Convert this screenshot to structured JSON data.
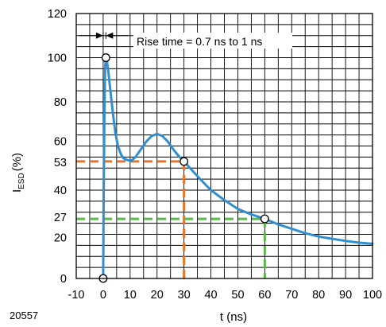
{
  "chart_data": {
    "type": "line",
    "xlabel": "t (ns)",
    "ylabel_main": "I",
    "ylabel_sub": "ESD",
    "ylabel_unit": "(%)",
    "figure_code": "20557",
    "annotation": "Rise time = 0.7 ns to 1 ns",
    "xlim": [
      -10,
      100
    ],
    "ylim": [
      0,
      120
    ],
    "x_ticks": [
      "-10",
      "0",
      "10",
      "20",
      "30",
      "40",
      "50",
      "60",
      "70",
      "80",
      "90",
      "100"
    ],
    "y_ticks": [
      {
        "value": 0,
        "label": "0"
      },
      {
        "value": 20,
        "label": "20"
      },
      {
        "value": 27,
        "label": "27"
      },
      {
        "value": 40,
        "label": "40"
      },
      {
        "value": 53,
        "label": "53"
      },
      {
        "value": 60,
        "label": "60"
      },
      {
        "value": 80,
        "label": "80"
      },
      {
        "value": 100,
        "label": "100"
      },
      {
        "value": 120,
        "label": "120"
      }
    ],
    "grid": true,
    "series": [
      {
        "color": "#2f8fd0",
        "x": [
          0,
          0.15,
          0.4,
          0.7,
          1.0,
          1.3,
          1.8,
          2.5,
          3.5,
          4.5,
          5.5,
          6.5,
          7.5,
          8.5,
          9.5,
          10.5,
          12,
          14,
          16,
          18,
          20,
          22,
          24,
          26,
          28,
          30,
          33,
          36,
          40,
          45,
          50,
          55,
          60,
          65,
          70,
          75,
          80,
          85,
          90,
          95,
          100
        ],
        "y": [
          0,
          30,
          70,
          95,
          100,
          99,
          95,
          87,
          76,
          66,
          60,
          56.5,
          54.5,
          53.8,
          53.5,
          53.4,
          55,
          58.5,
          62,
          64.5,
          65.5,
          64.5,
          62,
          58.5,
          55.5,
          53,
          49,
          45,
          40,
          35.5,
          31.5,
          29,
          27,
          24.5,
          22.5,
          20.5,
          19,
          18,
          17,
          16.2,
          15.7
        ]
      }
    ],
    "markers": [
      {
        "x": 0,
        "y": 0
      },
      {
        "x": 1,
        "y": 100
      },
      {
        "x": 30,
        "y": 53
      },
      {
        "x": 60,
        "y": 27
      }
    ],
    "reference_lines": [
      {
        "y": 53,
        "x": 30,
        "color": "#e8742a"
      },
      {
        "y": 27,
        "x": 60,
        "color": "#5cb84c"
      }
    ],
    "rise_time_x": [
      0,
      1
    ]
  }
}
